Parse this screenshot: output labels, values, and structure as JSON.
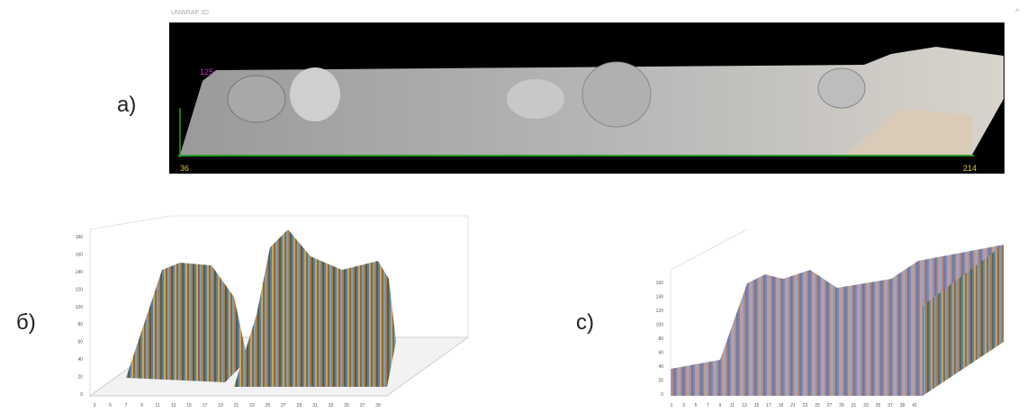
{
  "panels": [
    {
      "label": "а)",
      "header": "UNWRAP 3D",
      "top_value": "125",
      "left_value": "36",
      "right_value": "214"
    },
    {
      "label": "б)",
      "yticks": [
        0,
        20,
        40,
        60,
        80,
        100,
        120,
        140,
        160,
        180
      ],
      "xticks": [
        3,
        5,
        7,
        9,
        11,
        13,
        15,
        17,
        19,
        21,
        23,
        25,
        27,
        29,
        31,
        33,
        35,
        37,
        39
      ]
    },
    {
      "label": "с)",
      "yticks": [
        0,
        20,
        40,
        60,
        80,
        100,
        120,
        140,
        160
      ],
      "xticks": [
        1,
        3,
        5,
        7,
        9,
        11,
        13,
        15,
        17,
        19,
        21,
        23,
        25,
        27,
        29,
        31,
        33,
        35,
        37,
        39,
        41
      ]
    }
  ]
}
